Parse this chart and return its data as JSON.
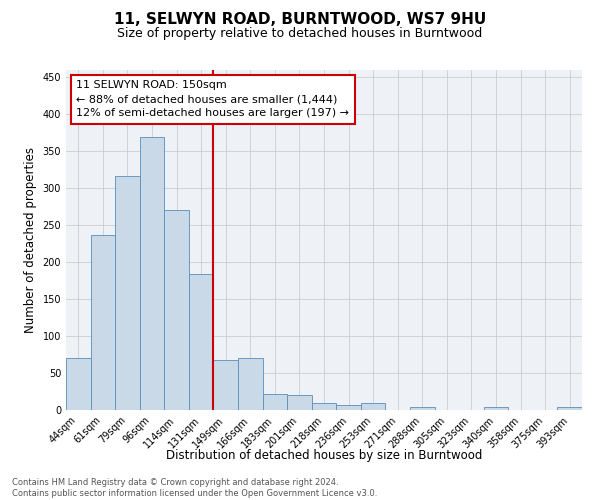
{
  "title": "11, SELWYN ROAD, BURNTWOOD, WS7 9HU",
  "subtitle": "Size of property relative to detached houses in Burntwood",
  "xlabel": "Distribution of detached houses by size in Burntwood",
  "ylabel": "Number of detached properties",
  "bar_labels": [
    "44sqm",
    "61sqm",
    "79sqm",
    "96sqm",
    "114sqm",
    "131sqm",
    "149sqm",
    "166sqm",
    "183sqm",
    "201sqm",
    "218sqm",
    "236sqm",
    "253sqm",
    "271sqm",
    "288sqm",
    "305sqm",
    "323sqm",
    "340sqm",
    "358sqm",
    "375sqm",
    "393sqm"
  ],
  "bar_values": [
    70,
    237,
    317,
    370,
    270,
    184,
    68,
    70,
    22,
    20,
    10,
    7,
    10,
    0,
    4,
    0,
    0,
    4,
    0,
    0,
    4
  ],
  "bar_color": "#c9d9e8",
  "bar_edge_color": "#5b8db8",
  "vline_index": 6,
  "vline_color": "#cc0000",
  "annotation_text": "11 SELWYN ROAD: 150sqm\n← 88% of detached houses are smaller (1,444)\n12% of semi-detached houses are larger (197) →",
  "annotation_box_color": "#cc0000",
  "ylim": [
    0,
    460
  ],
  "yticks": [
    0,
    50,
    100,
    150,
    200,
    250,
    300,
    350,
    400,
    450
  ],
  "grid_color": "#cccccc",
  "bg_color": "#eef2f7",
  "footer_text": "Contains HM Land Registry data © Crown copyright and database right 2024.\nContains public sector information licensed under the Open Government Licence v3.0.",
  "title_fontsize": 11,
  "subtitle_fontsize": 9,
  "annotation_fontsize": 8,
  "ylabel_fontsize": 8.5,
  "xlabel_fontsize": 8.5,
  "footer_fontsize": 6,
  "tick_fontsize": 7
}
